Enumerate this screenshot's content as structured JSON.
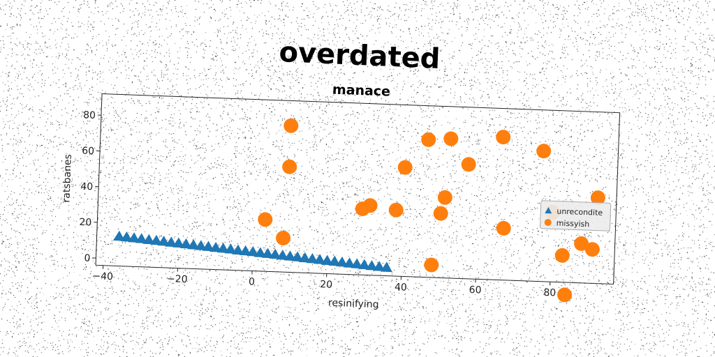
{
  "chart_data": {
    "type": "scatter",
    "suptitle": "overdated",
    "title": "manace",
    "xlabel": "resinifying",
    "ylabel": "ratsbanes",
    "xlim": [
      -42,
      97
    ],
    "ylim": [
      -4,
      92
    ],
    "xticks": [
      -40,
      -20,
      0,
      20,
      40,
      60,
      80
    ],
    "yticks": [
      0,
      20,
      40,
      60,
      80
    ],
    "grid": false,
    "legend_position": "center-right",
    "series": [
      {
        "name": "unrecondite",
        "marker": "triangle",
        "color": "#1f77b4",
        "x": [
          -36,
          -34,
          -32,
          -30,
          -28,
          -26,
          -24,
          -22,
          -20,
          -18,
          -16,
          -14,
          -12,
          -10,
          -8,
          -6,
          -4,
          -2,
          0,
          2,
          4,
          6,
          8,
          10,
          12,
          14,
          16,
          18,
          20,
          22,
          24,
          26,
          28,
          30,
          32,
          34,
          36
        ],
        "y": [
          12.5,
          12.2,
          11.9,
          11.6,
          11.2,
          10.9,
          10.6,
          10.2,
          9.9,
          9.6,
          9.2,
          8.9,
          8.6,
          8.2,
          7.9,
          7.6,
          7.2,
          6.9,
          6.6,
          6.2,
          5.9,
          5.6,
          5.2,
          4.9,
          4.6,
          4.2,
          3.9,
          3.6,
          3.2,
          2.9,
          2.6,
          2.2,
          1.9,
          1.6,
          1.2,
          0.9,
          0.6
        ]
      },
      {
        "name": "missyish",
        "marker": "circle",
        "color": "#ff7f0e",
        "x": [
          9,
          9,
          3,
          8,
          29,
          31,
          38,
          40,
          46,
          48,
          50,
          51,
          52,
          57,
          66,
          67,
          77,
          80,
          83,
          84,
          88,
          91,
          92
        ],
        "y": [
          78,
          55,
          25,
          15,
          33,
          35,
          33,
          57,
          73,
          3,
          32,
          41,
          74,
          60,
          76,
          25,
          69,
          35,
          11,
          -11,
          18,
          15,
          44
        ]
      }
    ]
  }
}
